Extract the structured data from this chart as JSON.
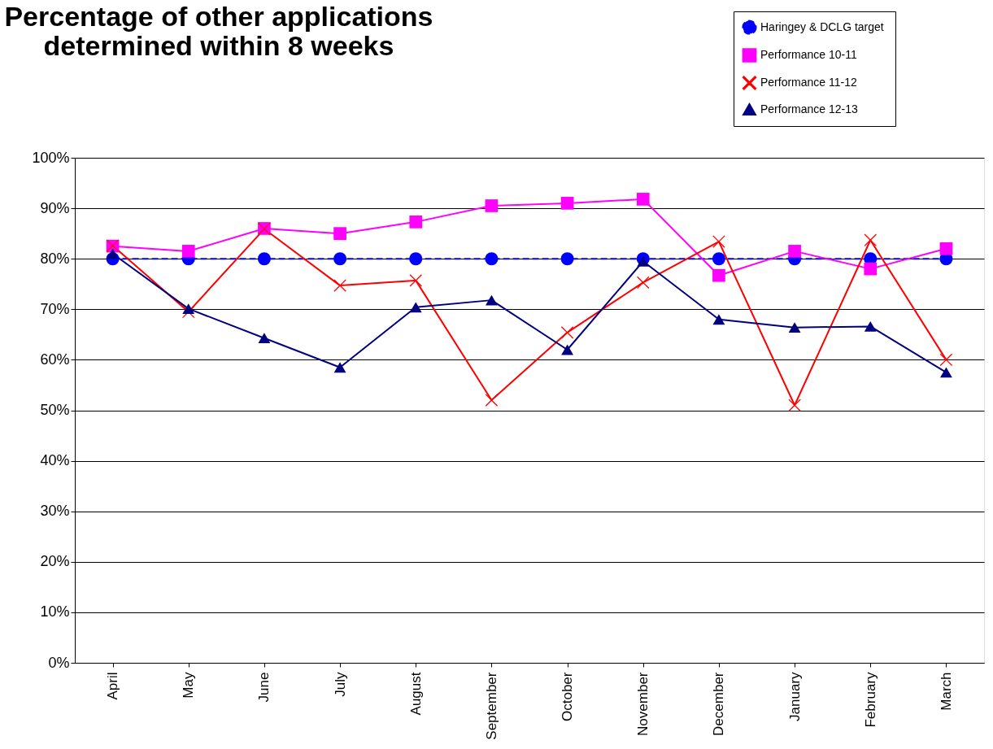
{
  "chart_data": {
    "type": "line",
    "title": "Percentage of other applications\ndetermined within 8 weeks",
    "categories": [
      "April",
      "May",
      "June",
      "July",
      "August",
      "September",
      "October",
      "November",
      "December",
      "January",
      "February",
      "March"
    ],
    "series": [
      {
        "name": "Haringey  & DCLG target",
        "color": "#0000ff",
        "marker": "circle",
        "line_style": "dashed",
        "values": [
          80,
          80,
          80,
          80,
          80,
          80,
          80,
          80,
          80,
          80,
          80,
          80
        ]
      },
      {
        "name": "Performance 10-11",
        "color": "#ff00ff",
        "marker": "square",
        "line_style": "solid",
        "values": [
          82.5,
          81.5,
          86,
          85,
          87.3,
          90.5,
          91,
          91.8,
          76.7,
          81.5,
          78,
          82
        ]
      },
      {
        "name": "Performance 11-12",
        "color": "#ff0000",
        "marker": "cross",
        "line_style": "solid",
        "values": [
          82.6,
          69.5,
          85.9,
          74.7,
          75.7,
          52,
          65.4,
          75.3,
          83.4,
          51,
          83.7,
          60
        ]
      },
      {
        "name": "Performance 12-13",
        "color": "#000080",
        "marker": "triangle",
        "line_style": "solid",
        "values": [
          81,
          70.1,
          64.3,
          58.5,
          70.4,
          71.8,
          62,
          79.5,
          68,
          66.4,
          66.6,
          57.5
        ]
      }
    ],
    "ylim": [
      0,
      100
    ],
    "yticks": [
      {
        "value": 0,
        "label": "0%"
      },
      {
        "value": 10,
        "label": "10%"
      },
      {
        "value": 20,
        "label": "20%"
      },
      {
        "value": 30,
        "label": "30%"
      },
      {
        "value": 40,
        "label": "40%"
      },
      {
        "value": 50,
        "label": "50%"
      },
      {
        "value": 60,
        "label": "60%"
      },
      {
        "value": 70,
        "label": "70%"
      },
      {
        "value": 80,
        "label": "80%"
      },
      {
        "value": 90,
        "label": "90%"
      },
      {
        "value": 100,
        "label": "100%"
      }
    ],
    "grid": "y",
    "legend": "top right"
  }
}
